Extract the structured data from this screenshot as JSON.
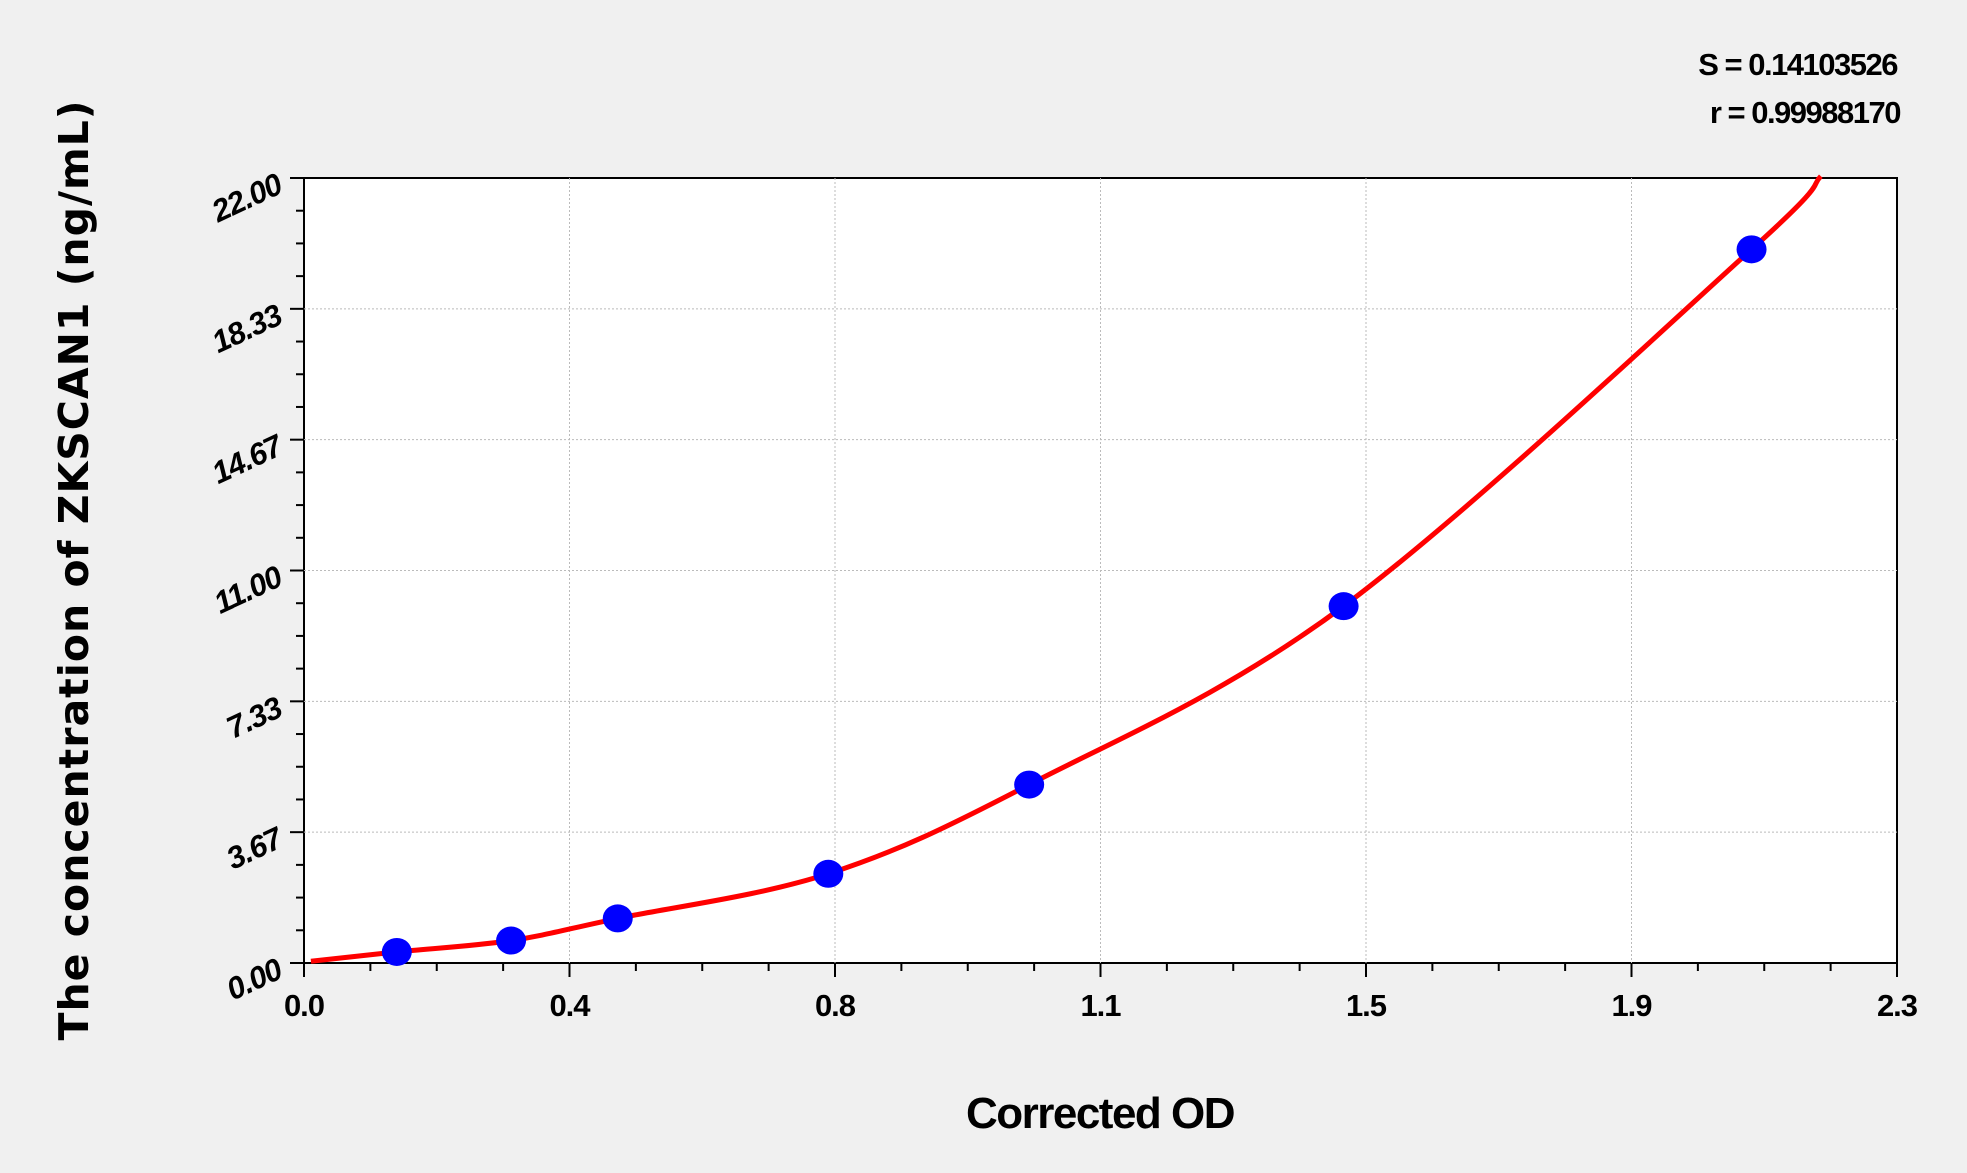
{
  "chart_data": {
    "type": "scatter",
    "title": "",
    "xlabel": "Corrected OD",
    "ylabel": "The concentration of  ZKSCAN1 (ng/mL)",
    "xlim": [
      0,
      2.3
    ],
    "ylim": [
      0,
      22
    ],
    "x_tick_labels": [
      "0.0",
      "0.4",
      "0.8",
      "1.1",
      "1.5",
      "1.9",
      "2.3"
    ],
    "y_tick_labels": [
      "0.00",
      "3.67",
      "7.33",
      "11.00",
      "14.67",
      "18.33",
      "22.00"
    ],
    "grid": true,
    "annotations": [
      "S = 0.14103526",
      "r = 0.99988170"
    ],
    "series": [
      {
        "type": "scatter",
        "color": "#0000ff",
        "x": [
          0.134,
          0.299,
          0.453,
          0.757,
          1.047,
          1.501,
          2.09
        ],
        "y": [
          0.31,
          0.63,
          1.25,
          2.5,
          5,
          10,
          20
        ]
      },
      {
        "type": "line",
        "color": "#ff0000",
        "fit": "curve through standards"
      }
    ]
  }
}
